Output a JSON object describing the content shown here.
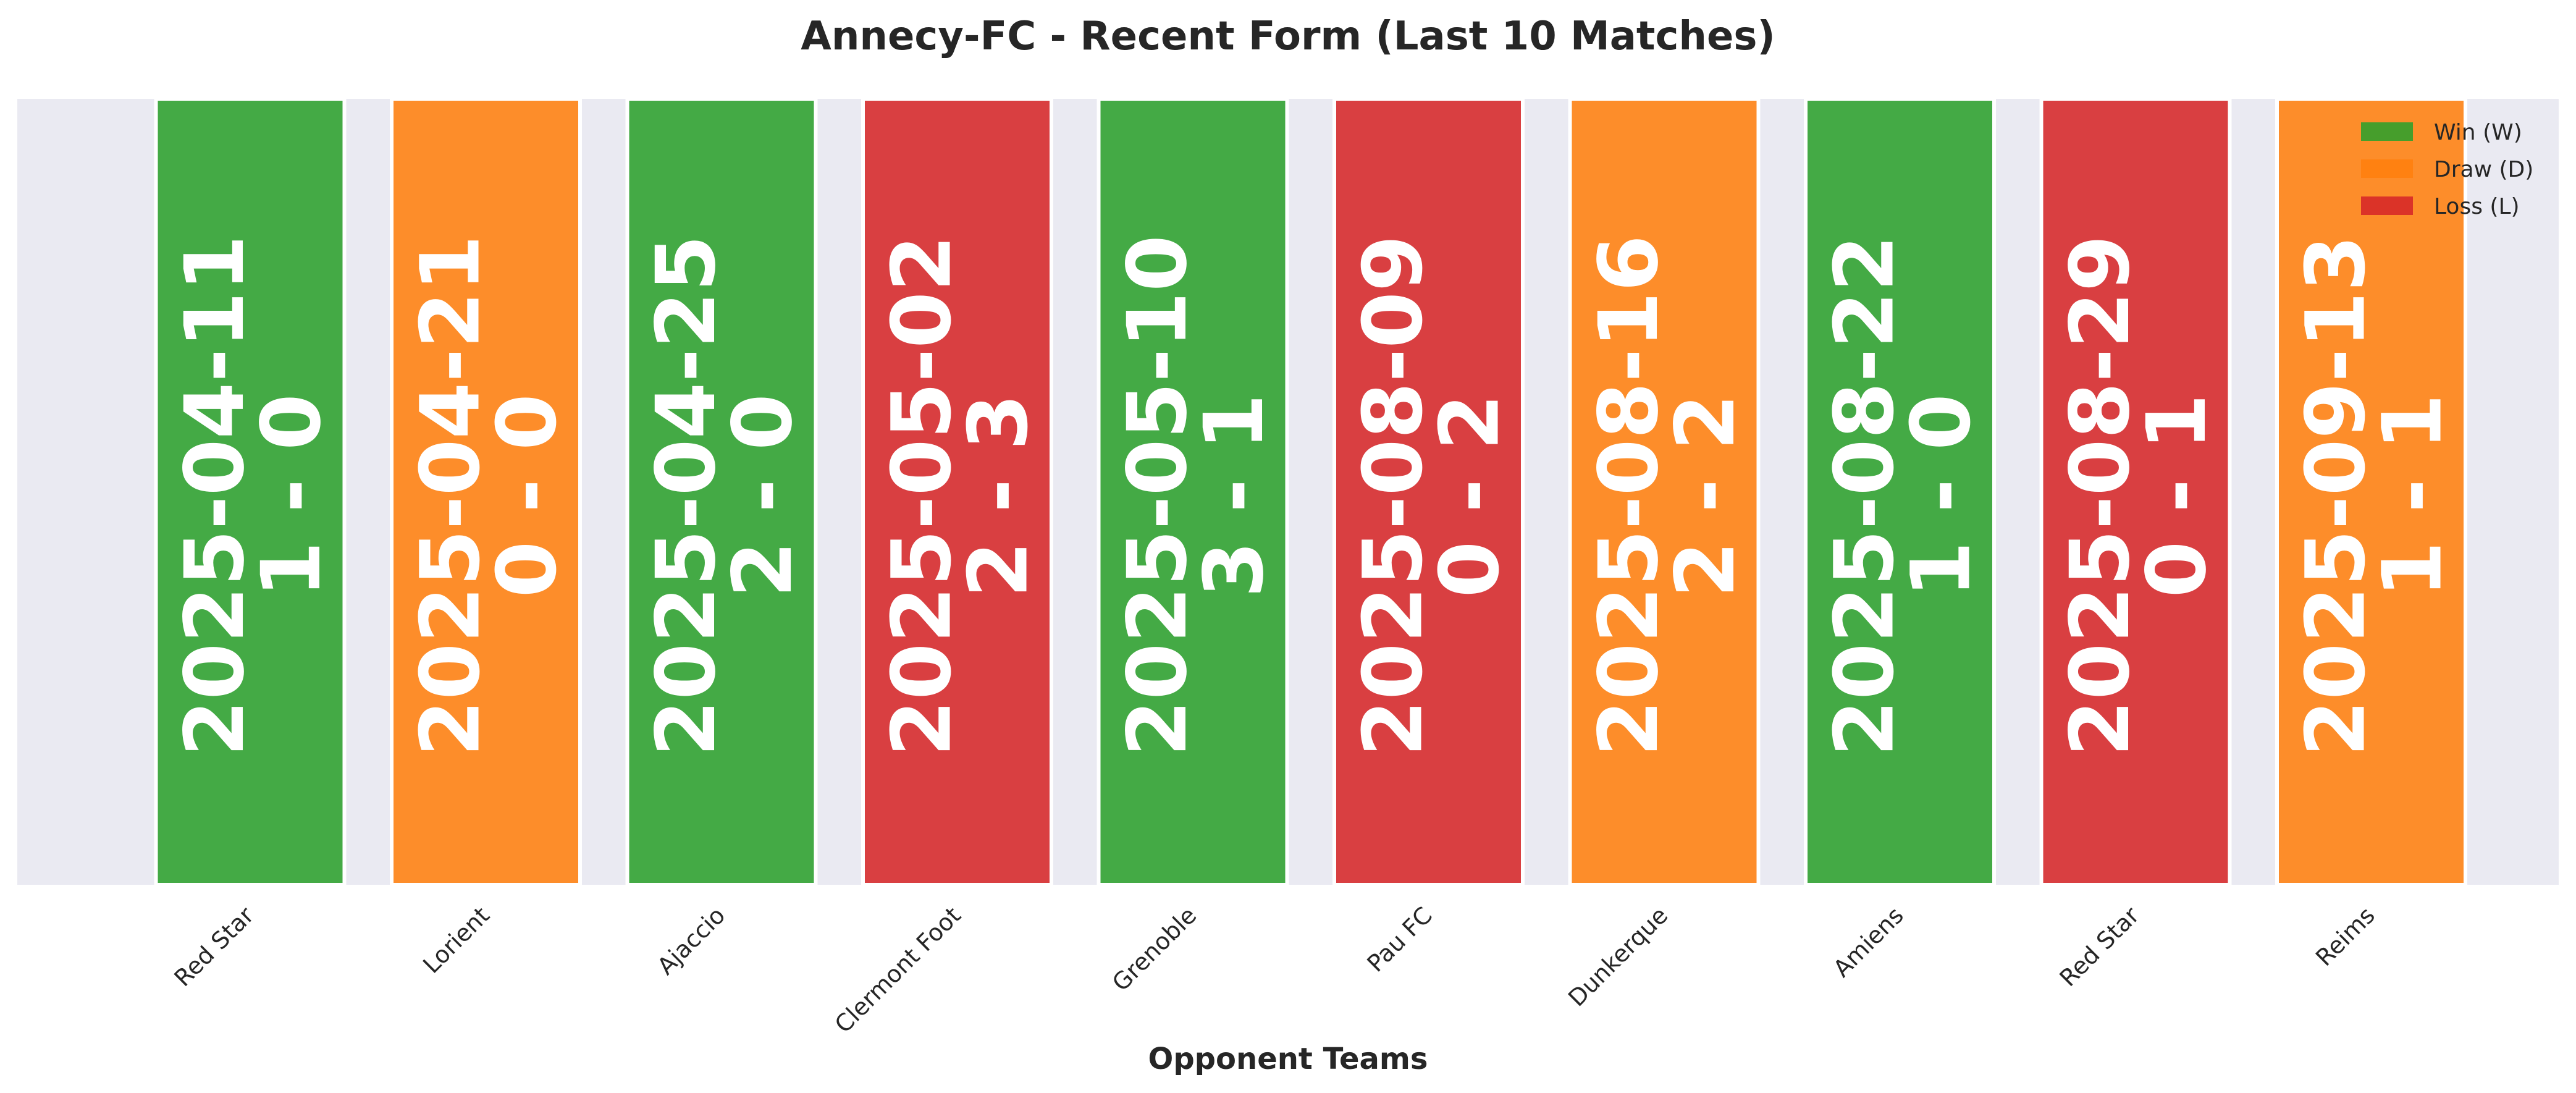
{
  "chart_data": {
    "type": "bar",
    "title": "Annecy-FC - Recent Form (Last 10 Matches)",
    "xlabel": "Opponent Teams",
    "ylabel": "",
    "ylim": [
      0,
      1
    ],
    "grid": false,
    "legend_position": "top-right",
    "categories": [
      "Red Star",
      "Lorient",
      "Ajaccio",
      "Clermont Foot",
      "Grenoble",
      "Pau FC",
      "Dunkerque",
      "Amiens",
      "Red Star",
      "Reims"
    ],
    "values": [
      1,
      1,
      1,
      1,
      1,
      1,
      1,
      1,
      1,
      1
    ],
    "results": [
      "W",
      "D",
      "W",
      "L",
      "W",
      "L",
      "D",
      "W",
      "L",
      "D"
    ],
    "dates": [
      "2025-04-11",
      "2025-04-21",
      "2025-04-25",
      "2025-05-02",
      "2025-05-10",
      "2025-08-09",
      "2025-08-16",
      "2025-08-22",
      "2025-08-29",
      "2025-09-13"
    ],
    "scores": [
      "1 - 0",
      "0 - 0",
      "2 - 0",
      "2 - 3",
      "3 - 1",
      "0 - 2",
      "2 - 2",
      "1 - 0",
      "0 - 1",
      "1 - 1"
    ],
    "legend": [
      {
        "key": "W",
        "label": "Win (W)"
      },
      {
        "key": "D",
        "label": "Draw (D)"
      },
      {
        "key": "L",
        "label": "Loss (L)"
      }
    ],
    "colors": {
      "W": "#2ca02c",
      "D": "#ff7f0e",
      "L": "#d62728",
      "plot_background": "#eaeaf2",
      "bar_edge": "#ffffff",
      "label_text": "#ffffff"
    }
  }
}
